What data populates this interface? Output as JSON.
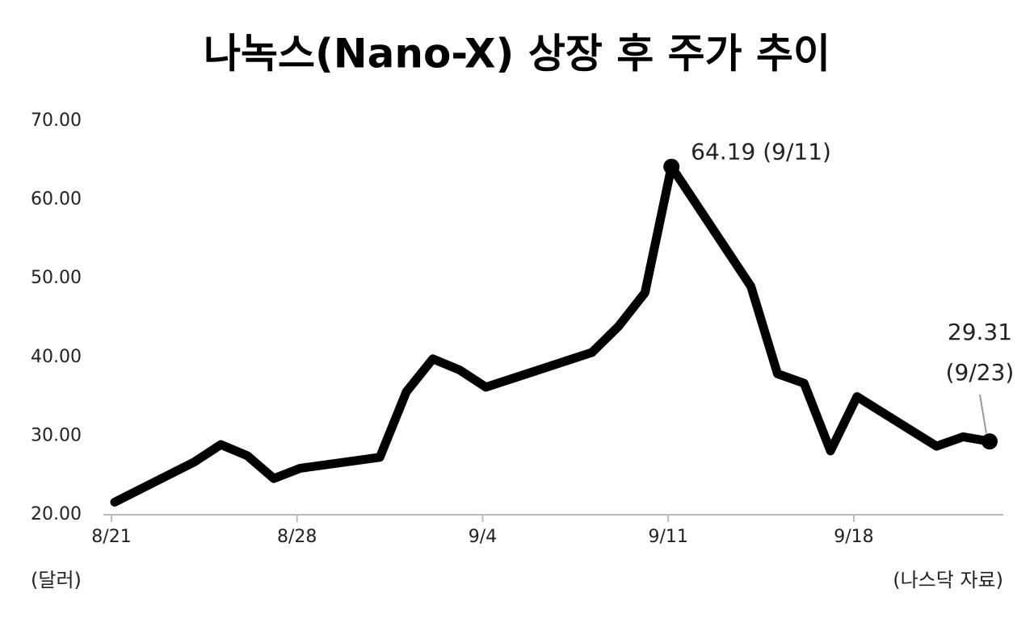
{
  "chart_data": {
    "type": "line",
    "title": "나녹스(Nano-X) 상장 후 주가 추이",
    "y_unit_label": "(달러)",
    "source": "(나스닥 자료)",
    "x": [
      "8/21",
      "8/24",
      "8/25",
      "8/26",
      "8/27",
      "8/28",
      "8/31",
      "9/1",
      "9/2",
      "9/3",
      "9/4",
      "9/8",
      "9/9",
      "9/10",
      "9/11",
      "9/14",
      "9/15",
      "9/16",
      "9/17",
      "9/18",
      "9/21",
      "9/22",
      "9/23"
    ],
    "series": [
      {
        "name": "나녹스",
        "color": "#000000",
        "values": [
          21.6,
          26.7,
          28.9,
          27.5,
          24.6,
          25.9,
          27.3,
          35.6,
          39.8,
          38.4,
          36.2,
          40.6,
          43.9,
          48.2,
          64.19,
          49.0,
          37.9,
          36.7,
          28.1,
          35.0,
          28.7,
          29.9,
          29.31
        ]
      }
    ],
    "xlim": [
      "8/21",
      "9/23"
    ],
    "xticks": [
      "8/21",
      "8/28",
      "9/4",
      "9/11",
      "9/18"
    ],
    "ylim": [
      20,
      70
    ],
    "yticks": [
      {
        "value": 20,
        "label": "20.00"
      },
      {
        "value": 30,
        "label": "30.00"
      },
      {
        "value": 40,
        "label": "40.00"
      },
      {
        "value": 50,
        "label": "50.00"
      },
      {
        "value": 60,
        "label": "60.00"
      },
      {
        "value": 70,
        "label": "70.00"
      }
    ],
    "annotations": [
      {
        "index": 14,
        "lines": [
          "64.19 (9/11)"
        ]
      },
      {
        "index": 22,
        "lines": [
          "29.31",
          "(9/23)"
        ]
      }
    ]
  }
}
